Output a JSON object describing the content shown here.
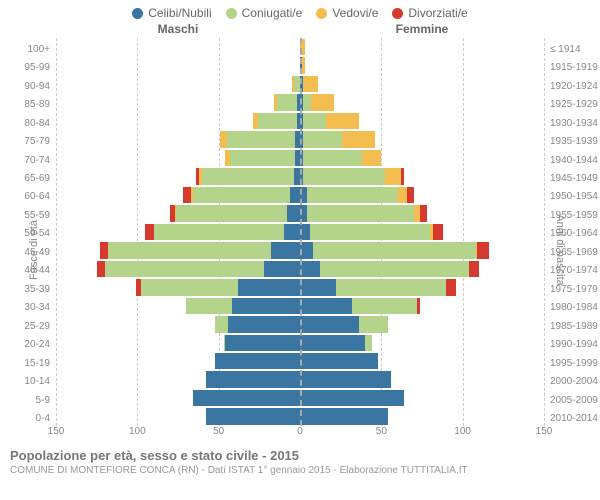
{
  "legend": [
    {
      "label": "Celibi/Nubili",
      "color": "#3b76a3"
    },
    {
      "label": "Coniugati/e",
      "color": "#b4d38b"
    },
    {
      "label": "Vedovi/e",
      "color": "#f3bd4f"
    },
    {
      "label": "Divorziati/e",
      "color": "#d63a2e"
    }
  ],
  "header": {
    "male": "Maschi",
    "female": "Femmine"
  },
  "axis_left_title": "Fasce di età",
  "axis_right_title": "Anni di nascita",
  "title": "Popolazione per età, sesso e stato civile - 2015",
  "subtitle": "COMUNE DI MONTEFIORE CONCA (RN) - Dati ISTAT 1° gennaio 2015 - Elaborazione TUTTITALIA.IT",
  "colors": {
    "celibi": "#3b76a3",
    "coniugati": "#b4d38b",
    "vedovi": "#f3bd4f",
    "divorziati": "#d63a2e",
    "grid": "#cccccc",
    "center": "#aaaaaa",
    "bg": "#ffffff"
  },
  "xmax": 150,
  "xticks": [
    150,
    100,
    50,
    0,
    50,
    100,
    150
  ],
  "age_labels": [
    "100+",
    "95-99",
    "90-94",
    "85-89",
    "80-84",
    "75-79",
    "70-74",
    "65-69",
    "60-64",
    "55-59",
    "50-54",
    "45-49",
    "40-44",
    "35-39",
    "30-34",
    "25-29",
    "20-24",
    "15-19",
    "10-14",
    "5-9",
    "0-4"
  ],
  "birth_labels": [
    "≤ 1914",
    "1915-1919",
    "1920-1924",
    "1925-1929",
    "1930-1934",
    "1935-1939",
    "1940-1944",
    "1945-1949",
    "1950-1954",
    "1955-1959",
    "1960-1964",
    "1965-1969",
    "1970-1974",
    "1975-1979",
    "1980-1984",
    "1985-1989",
    "1990-1994",
    "1995-1999",
    "2000-2004",
    "2005-2009",
    "2010-2014"
  ],
  "rows": [
    {
      "m": {
        "c": 0,
        "g": 0,
        "v": 0,
        "d": 0
      },
      "f": {
        "c": 0,
        "g": 0,
        "v": 3,
        "d": 0
      }
    },
    {
      "m": {
        "c": 0,
        "g": 0,
        "v": 0,
        "d": 0
      },
      "f": {
        "c": 1,
        "g": 0,
        "v": 2,
        "d": 0
      }
    },
    {
      "m": {
        "c": 0,
        "g": 4,
        "v": 1,
        "d": 0
      },
      "f": {
        "c": 2,
        "g": 0,
        "v": 9,
        "d": 0
      }
    },
    {
      "m": {
        "c": 2,
        "g": 12,
        "v": 2,
        "d": 0
      },
      "f": {
        "c": 2,
        "g": 5,
        "v": 14,
        "d": 0
      }
    },
    {
      "m": {
        "c": 2,
        "g": 24,
        "v": 3,
        "d": 0
      },
      "f": {
        "c": 2,
        "g": 14,
        "v": 20,
        "d": 0
      }
    },
    {
      "m": {
        "c": 3,
        "g": 42,
        "v": 4,
        "d": 0
      },
      "f": {
        "c": 2,
        "g": 24,
        "v": 20,
        "d": 0
      }
    },
    {
      "m": {
        "c": 3,
        "g": 40,
        "v": 3,
        "d": 0
      },
      "f": {
        "c": 2,
        "g": 36,
        "v": 12,
        "d": 0
      }
    },
    {
      "m": {
        "c": 4,
        "g": 56,
        "v": 2,
        "d": 2
      },
      "f": {
        "c": 2,
        "g": 50,
        "v": 10,
        "d": 2
      }
    },
    {
      "m": {
        "c": 6,
        "g": 60,
        "v": 1,
        "d": 5
      },
      "f": {
        "c": 4,
        "g": 56,
        "v": 6,
        "d": 4
      }
    },
    {
      "m": {
        "c": 8,
        "g": 68,
        "v": 1,
        "d": 3
      },
      "f": {
        "c": 4,
        "g": 66,
        "v": 4,
        "d": 4
      }
    },
    {
      "m": {
        "c": 10,
        "g": 80,
        "v": 0,
        "d": 5
      },
      "f": {
        "c": 6,
        "g": 74,
        "v": 2,
        "d": 6
      }
    },
    {
      "m": {
        "c": 18,
        "g": 100,
        "v": 0,
        "d": 5
      },
      "f": {
        "c": 8,
        "g": 100,
        "v": 1,
        "d": 7
      }
    },
    {
      "m": {
        "c": 22,
        "g": 98,
        "v": 0,
        "d": 5
      },
      "f": {
        "c": 12,
        "g": 92,
        "v": 0,
        "d": 6
      }
    },
    {
      "m": {
        "c": 38,
        "g": 60,
        "v": 0,
        "d": 3
      },
      "f": {
        "c": 22,
        "g": 68,
        "v": 0,
        "d": 6
      }
    },
    {
      "m": {
        "c": 42,
        "g": 28,
        "v": 0,
        "d": 0
      },
      "f": {
        "c": 32,
        "g": 40,
        "v": 0,
        "d": 2
      }
    },
    {
      "m": {
        "c": 44,
        "g": 8,
        "v": 0,
        "d": 0
      },
      "f": {
        "c": 36,
        "g": 18,
        "v": 0,
        "d": 0
      }
    },
    {
      "m": {
        "c": 46,
        "g": 1,
        "v": 0,
        "d": 0
      },
      "f": {
        "c": 40,
        "g": 4,
        "v": 0,
        "d": 0
      }
    },
    {
      "m": {
        "c": 52,
        "g": 0,
        "v": 0,
        "d": 0
      },
      "f": {
        "c": 48,
        "g": 0,
        "v": 0,
        "d": 0
      }
    },
    {
      "m": {
        "c": 58,
        "g": 0,
        "v": 0,
        "d": 0
      },
      "f": {
        "c": 56,
        "g": 0,
        "v": 0,
        "d": 0
      }
    },
    {
      "m": {
        "c": 66,
        "g": 0,
        "v": 0,
        "d": 0
      },
      "f": {
        "c": 64,
        "g": 0,
        "v": 0,
        "d": 0
      }
    },
    {
      "m": {
        "c": 58,
        "g": 0,
        "v": 0,
        "d": 0
      },
      "f": {
        "c": 54,
        "g": 0,
        "v": 0,
        "d": 0
      }
    }
  ]
}
